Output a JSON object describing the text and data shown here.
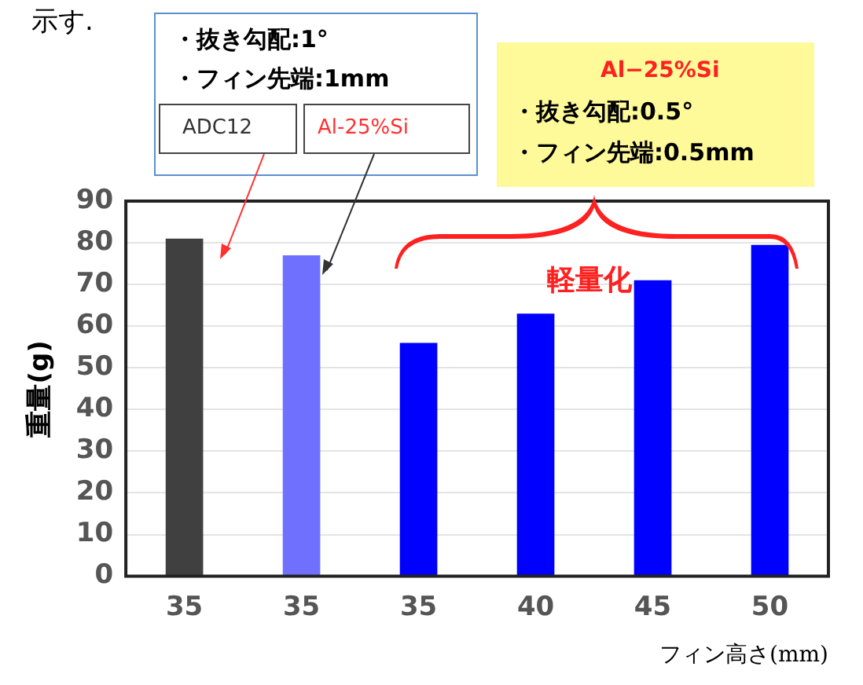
{
  "chart_data": {
    "type": "bar",
    "categories": [
      "35",
      "35",
      "35",
      "40",
      "45",
      "50"
    ],
    "values": [
      81,
      77,
      56,
      63,
      71,
      79.5
    ],
    "colors": [
      "#404040",
      "#7070ff",
      "#0000ff",
      "#0000ff",
      "#0000ff",
      "#0000ff"
    ],
    "ylabel": "重量(g)",
    "xlabel": "フィン高さ(mm)",
    "ylim": [
      0,
      90
    ],
    "yticks": [
      0,
      10,
      20,
      30,
      40,
      50,
      60,
      70,
      80,
      90
    ],
    "grid": "y",
    "annotations": [
      "示す.",
      "・抜き勾配:1°",
      "・フィン先端:1mm",
      "ADC12",
      "Al-25%Si",
      "Al−25%Si",
      "・抜き勾配:0.5°",
      "・フィン先端:0.5mm",
      "軽量化"
    ]
  }
}
